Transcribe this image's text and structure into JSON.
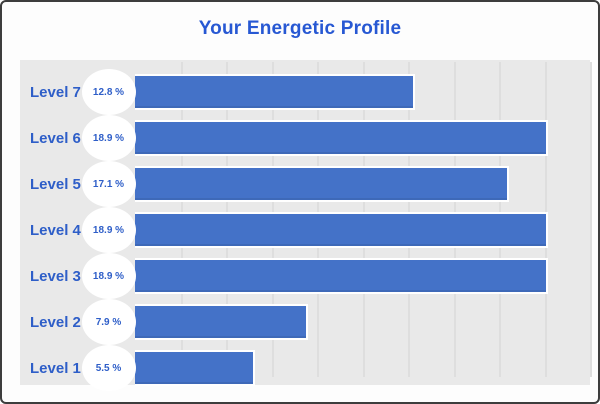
{
  "page": {
    "title": "Your Energetic Profile"
  },
  "colors": {
    "title_text": "#2758d3",
    "label_text": "#2e5ec8",
    "bar_fill": "#4472c8",
    "panel_background": "#e9e9e9",
    "gridline": "#dedede",
    "badge_background": "#ffffff",
    "window_border": "#3d3d3d"
  },
  "chart_data": {
    "type": "bar",
    "orientation": "horizontal",
    "title": "Your Energetic Profile",
    "categories": [
      "Level 7",
      "Level 6",
      "Level 5",
      "Level 4",
      "Level 3",
      "Level 2",
      "Level 1"
    ],
    "values": [
      12.8,
      18.9,
      17.1,
      18.9,
      18.9,
      7.9,
      5.5
    ],
    "value_labels": [
      "12.8 %",
      "18.9 %",
      "17.1 %",
      "18.9 %",
      "18.9 %",
      "7.9 %",
      "5.5 %"
    ],
    "xlabel": "",
    "ylabel": "",
    "xlim": [
      0,
      20.8
    ],
    "grid": true,
    "gridline_count": 10,
    "legend": false
  }
}
